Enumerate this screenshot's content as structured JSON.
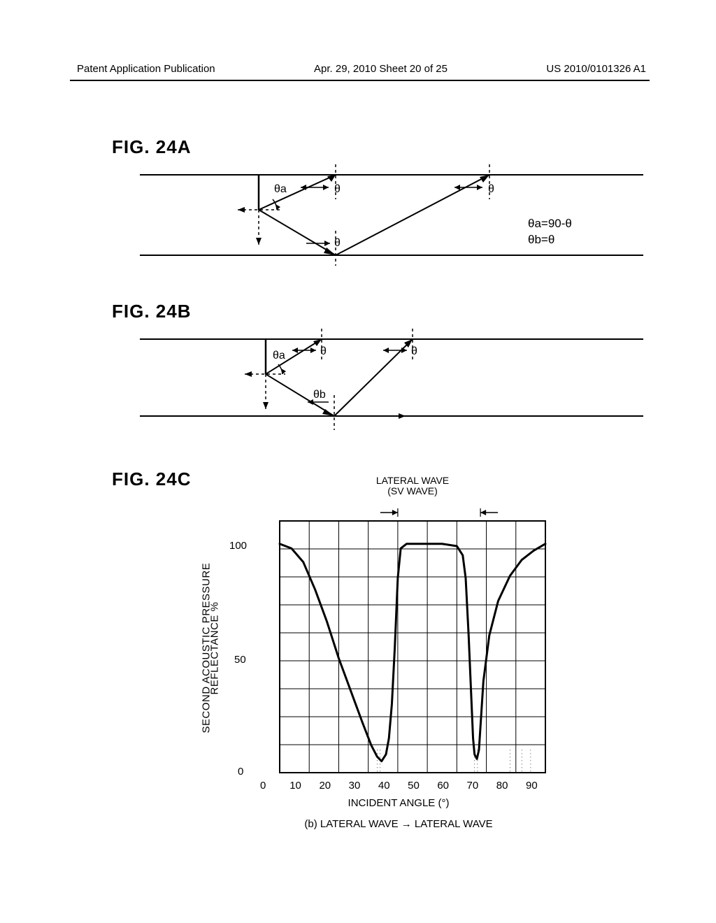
{
  "header": {
    "left": "Patent Application Publication",
    "center": "Apr. 29, 2010  Sheet 20 of 25",
    "right": "US 2010/0101326 A1"
  },
  "figA": {
    "label": "FIG. 24A",
    "theta_a": "θa",
    "theta": "θ",
    "eqs": [
      "θa=90-θ",
      "θb=θ"
    ]
  },
  "figB": {
    "label": "FIG. 24B",
    "theta_a": "θa",
    "theta_b": "θb",
    "theta": "θ"
  },
  "figC": {
    "label": "FIG. 24C",
    "top_annot_line1": "LATERAL WAVE",
    "top_annot_line2": "(SV WAVE)",
    "ylabel_line1": "SECOND ACOUSTIC PRESSURE",
    "ylabel_line2": "REFLECTANCE %",
    "xlabel": "INCIDENT ANGLE (°)",
    "caption": "(b) LATERAL WAVE → LATERAL WAVE",
    "xlim": [
      0,
      90
    ],
    "ylim": [
      0,
      110
    ],
    "xtick_step": 10,
    "yticks": [
      0,
      50,
      100
    ],
    "xticks": [
      0,
      10,
      20,
      30,
      40,
      50,
      60,
      70,
      80,
      90
    ],
    "lateral_band": [
      40,
      68
    ],
    "curve_color": "#000000",
    "grid_color": "#000000",
    "bg_color": "#ffffff",
    "line_width": 3,
    "curve": [
      [
        0,
        100
      ],
      [
        4,
        98
      ],
      [
        8,
        92
      ],
      [
        12,
        80
      ],
      [
        16,
        66
      ],
      [
        20,
        50
      ],
      [
        24,
        36
      ],
      [
        28,
        22
      ],
      [
        31,
        12
      ],
      [
        33,
        7
      ],
      [
        34.5,
        5
      ],
      [
        36,
        8
      ],
      [
        37,
        15
      ],
      [
        38,
        30
      ],
      [
        39,
        55
      ],
      [
        40,
        85
      ],
      [
        41,
        98
      ],
      [
        43,
        100
      ],
      [
        50,
        100
      ],
      [
        55,
        100
      ],
      [
        60,
        99
      ],
      [
        62,
        95
      ],
      [
        63,
        85
      ],
      [
        64,
        60
      ],
      [
        65,
        30
      ],
      [
        65.5,
        15
      ],
      [
        66,
        8
      ],
      [
        66.8,
        6
      ],
      [
        67.5,
        10
      ],
      [
        68,
        20
      ],
      [
        69,
        40
      ],
      [
        71,
        60
      ],
      [
        74,
        75
      ],
      [
        78,
        86
      ],
      [
        82,
        93
      ],
      [
        86,
        97
      ],
      [
        90,
        100
      ]
    ]
  },
  "colors": {
    "text": "#000000",
    "line": "#000000",
    "background": "#ffffff"
  }
}
